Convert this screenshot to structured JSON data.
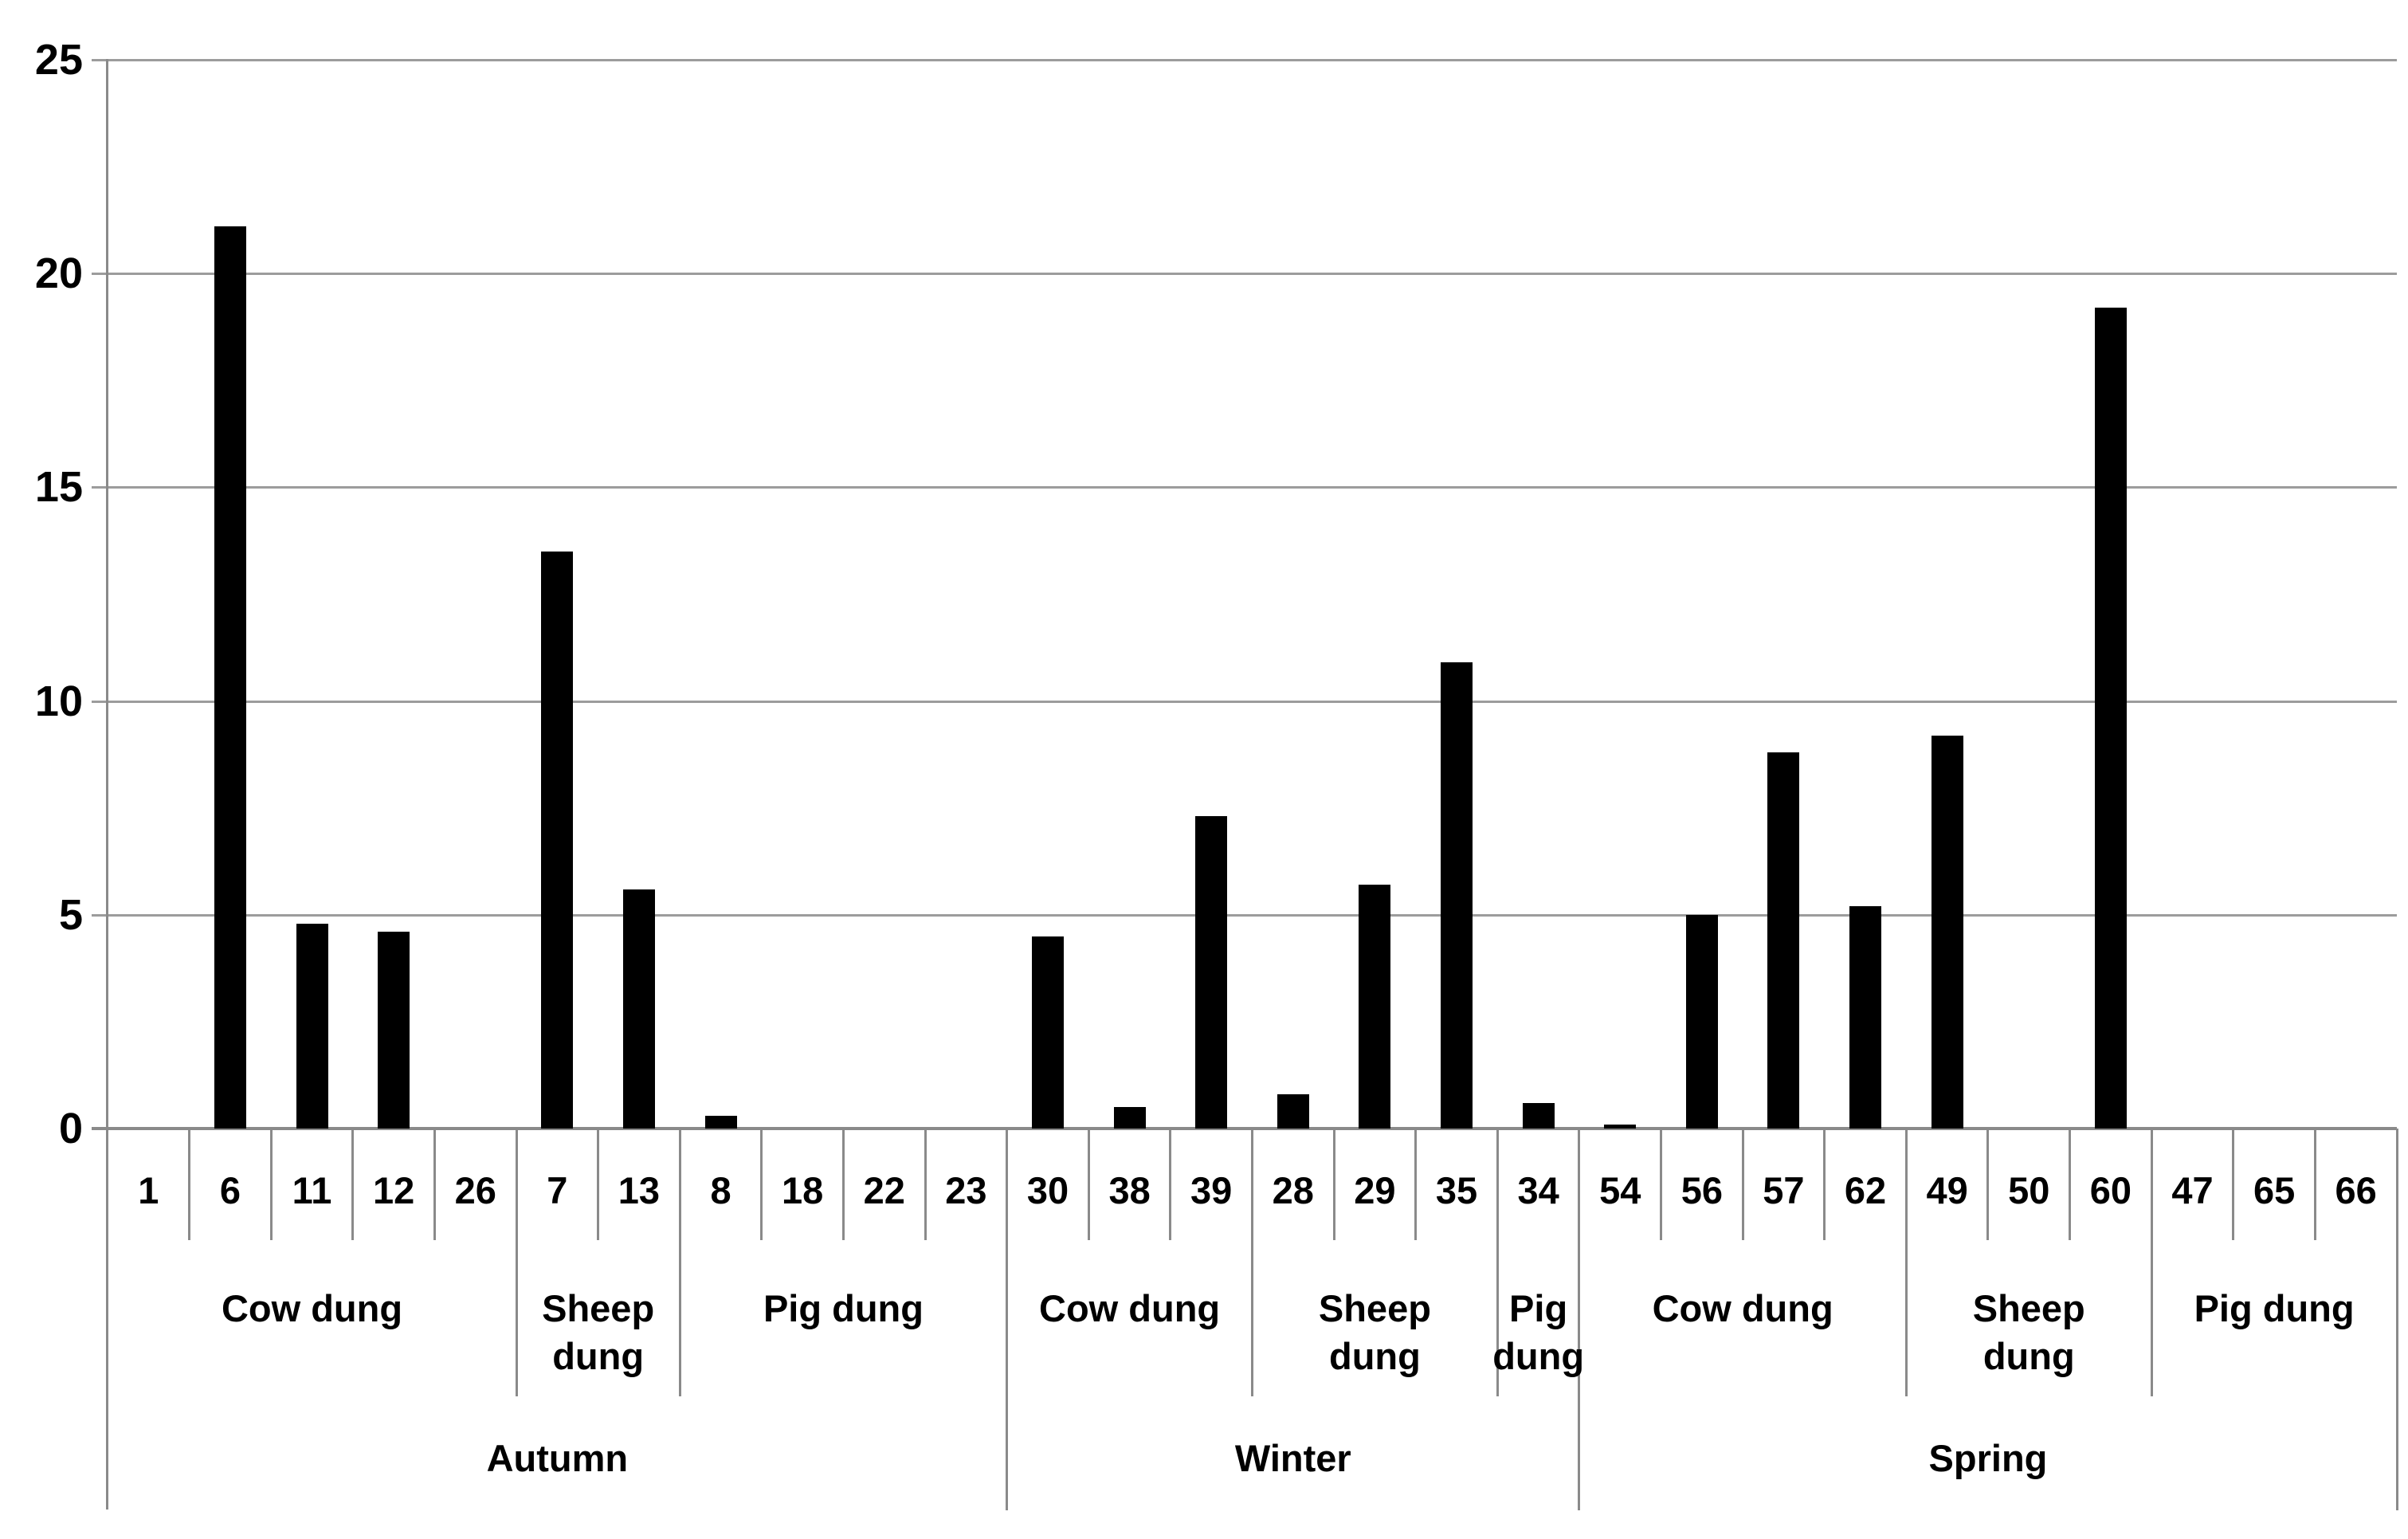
{
  "colors": {
    "background": "#ffffff",
    "bar": "#000000",
    "gridline": "#9c9c9c",
    "axis": "#8a8a8a",
    "text": "#000000"
  },
  "chart_data": {
    "type": "bar",
    "title": "",
    "xlabel": "",
    "ylabel": "",
    "ylim": [
      0,
      25
    ],
    "yticks": [
      0,
      5,
      10,
      15,
      20,
      25
    ],
    "grid": "horizontal",
    "legend": "none",
    "bar_color": "#000000",
    "categories": [
      "1",
      "6",
      "11",
      "12",
      "26",
      "7",
      "13",
      "8",
      "18",
      "22",
      "23",
      "30",
      "38",
      "39",
      "28",
      "29",
      "35",
      "34",
      "54",
      "56",
      "57",
      "62",
      "49",
      "50",
      "60",
      "47",
      "65",
      "66"
    ],
    "values": [
      0,
      21.1,
      4.8,
      4.6,
      0,
      13.5,
      5.6,
      0.3,
      0,
      0,
      0,
      4.5,
      0.5,
      7.3,
      0.8,
      5.7,
      10.9,
      0.6,
      0.1,
      5,
      8.8,
      5.2,
      9.2,
      0,
      19.2,
      0,
      0,
      0
    ],
    "seasons": [
      {
        "label": "Autumn",
        "dung_types": [
          {
            "label": "Cow dung",
            "span": 5
          },
          {
            "label": "Sheep dung",
            "span": 2
          },
          {
            "label": "Pig dung",
            "span": 4
          }
        ]
      },
      {
        "label": "Winter",
        "dung_types": [
          {
            "label": "Cow dung",
            "span": 3
          },
          {
            "label": "Sheep dung",
            "span": 3
          },
          {
            "label": "Pig dung",
            "span": 1
          }
        ]
      },
      {
        "label": "Spring",
        "dung_types": [
          {
            "label": "Cow dung",
            "span": 4
          },
          {
            "label": "Sheep dung",
            "span": 3
          },
          {
            "label": "Pig dung",
            "span": 3
          }
        ]
      }
    ]
  }
}
